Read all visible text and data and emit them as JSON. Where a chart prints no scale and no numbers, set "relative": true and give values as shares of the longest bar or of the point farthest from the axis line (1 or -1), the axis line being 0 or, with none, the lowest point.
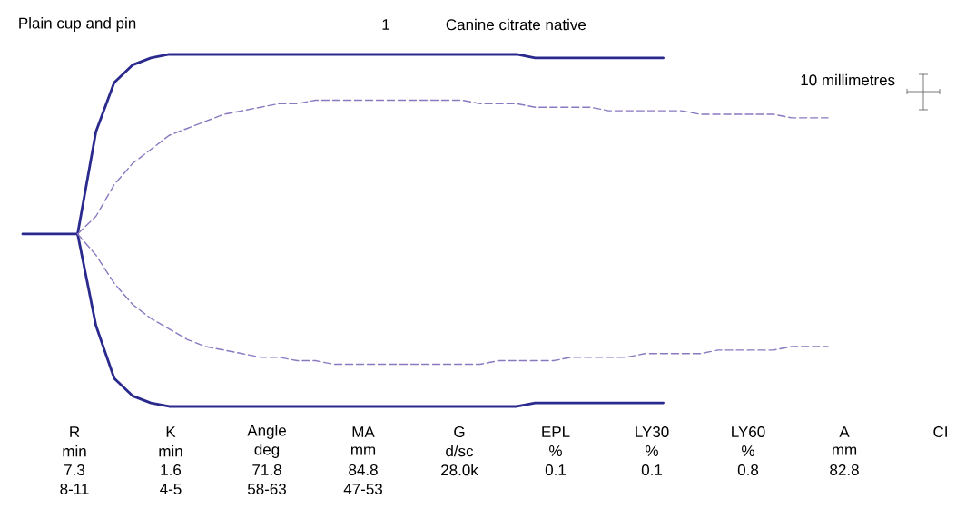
{
  "chart_data": {
    "type": "line",
    "relative": true,
    "title": "Canine citrate native",
    "annotations": [
      "Plain cup and pin",
      "1",
      "10 millimetres",
      "R",
      "min",
      "7.3",
      "8-11",
      "K",
      "min",
      "1.6",
      "4-5",
      "Angle",
      "deg",
      "71.8",
      "58-63",
      "MA",
      "mm",
      "84.8",
      "47-53",
      "G",
      "d/sc",
      "28.0k",
      "EPL",
      "%",
      "0.1",
      "LY30",
      "%",
      "0.1",
      "LY60",
      "%",
      "0.8",
      "A",
      "mm",
      "82.8",
      "CI"
    ],
    "categories": [
      null,
      null,
      null,
      null,
      null,
      null,
      null,
      null,
      null,
      null,
      null,
      null,
      null,
      null,
      null,
      null,
      null,
      null,
      null,
      null,
      null,
      null,
      null,
      null,
      null,
      null,
      null,
      null,
      null,
      null,
      null,
      null,
      null,
      null,
      null,
      null,
      null,
      null,
      null,
      null,
      null,
      null,
      null,
      null,
      null
    ],
    "series": [
      {
        "color": "#2a2a8e",
        "line_style": "solid",
        "values": [
          0.49,
          0.49,
          0.49,
          0.49,
          0.78,
          0.92,
          0.97,
          0.99,
          1.0,
          1.0,
          1.0,
          1.0,
          1.0,
          1.0,
          1.0,
          1.0,
          1.0,
          1.0,
          1.0,
          1.0,
          1.0,
          1.0,
          1.0,
          1.0,
          1.0,
          1.0,
          1.0,
          1.0,
          0.99,
          0.99,
          0.99,
          0.99,
          0.99,
          0.99,
          0.99,
          0.99,
          null,
          null,
          null,
          null,
          null,
          null,
          null,
          null,
          null
        ]
      },
      {
        "color": "#2a2a8e",
        "line_style": "solid",
        "values": [
          null,
          null,
          null,
          0.49,
          0.23,
          0.08,
          0.03,
          0.01,
          0,
          0,
          0,
          0,
          0,
          0,
          0,
          0,
          0,
          0,
          0,
          0,
          0,
          0,
          0,
          0,
          0,
          0,
          0,
          0,
          0.01,
          0.01,
          0.01,
          0.01,
          0.01,
          0.01,
          0.01,
          0.01,
          null,
          null,
          null,
          null,
          null,
          null,
          null,
          null,
          null
        ]
      },
      {
        "color": "#8a78c0",
        "line_style": "dashed",
        "values": [
          null,
          null,
          null,
          0.49,
          0.54,
          0.63,
          0.69,
          0.73,
          0.77,
          0.79,
          0.81,
          0.83,
          0.84,
          0.85,
          0.86,
          0.86,
          0.87,
          0.87,
          0.87,
          0.87,
          0.87,
          0.87,
          0.87,
          0.87,
          0.87,
          0.86,
          0.86,
          0.86,
          0.85,
          0.85,
          0.85,
          0.85,
          0.84,
          0.84,
          0.84,
          0.84,
          0.84,
          0.83,
          0.83,
          0.83,
          0.83,
          0.83,
          0.82,
          0.82,
          0.82
        ]
      },
      {
        "color": "#8a78c0",
        "line_style": "dashed",
        "values": [
          null,
          null,
          null,
          0.49,
          0.43,
          0.35,
          0.29,
          0.25,
          0.22,
          0.19,
          0.17,
          0.16,
          0.15,
          0.14,
          0.14,
          0.13,
          0.13,
          0.12,
          0.12,
          0.12,
          0.12,
          0.12,
          0.12,
          0.12,
          0.12,
          0.12,
          0.13,
          0.13,
          0.13,
          0.13,
          0.14,
          0.14,
          0.14,
          0.14,
          0.15,
          0.15,
          0.15,
          0.15,
          0.16,
          0.16,
          0.16,
          0.16,
          0.17,
          0.17,
          0.17
        ]
      }
    ]
  }
}
